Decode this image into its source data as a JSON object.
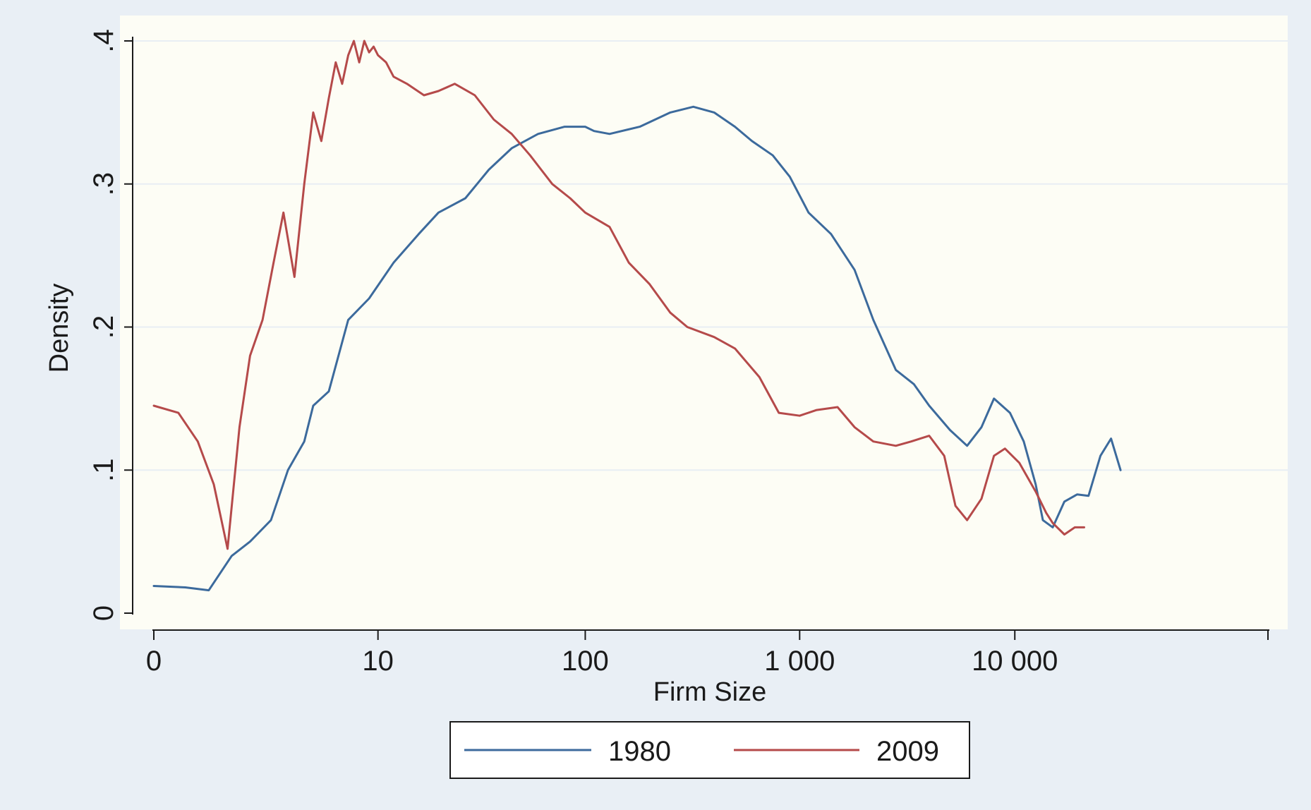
{
  "colors": {
    "outer_bg": "#e9eff5",
    "plot_bg": "#fdfdf5",
    "grid": "#e8eef4",
    "axis": "#1a1a1a",
    "series_1980": "#3c6a9c",
    "series_2009": "#b54a4a"
  },
  "chart_data": {
    "type": "line",
    "title": "",
    "xlabel": "Firm Size",
    "ylabel": "Density",
    "x_scale": "log1p",
    "xlim": [
      0,
      150000
    ],
    "ylim": [
      0,
      0.4
    ],
    "grid": true,
    "legend_position": "bottom-center",
    "x_ticks": [
      {
        "value": 0,
        "label": "0"
      },
      {
        "value": 10,
        "label": "10"
      },
      {
        "value": 100,
        "label": "100"
      },
      {
        "value": 1000,
        "label": "1 000"
      },
      {
        "value": 10000,
        "label": "10 000"
      },
      {
        "value": 150000,
        "label": ""
      }
    ],
    "y_ticks": [
      {
        "value": 0,
        "label": "0"
      },
      {
        "value": 0.1,
        "label": ".1"
      },
      {
        "value": 0.2,
        "label": ".2"
      },
      {
        "value": 0.3,
        "label": ".3"
      },
      {
        "value": 0.4,
        "label": ".4"
      }
    ],
    "series": [
      {
        "name": "1980",
        "color_key": "series_1980",
        "x": [
          0,
          0.4,
          0.8,
          1.3,
          1.8,
          2.5,
          3.2,
          4,
          4.5,
          5.5,
          7,
          9,
          12,
          16,
          20,
          27,
          35,
          45,
          60,
          80,
          100,
          110,
          130,
          180,
          250,
          320,
          400,
          500,
          600,
          750,
          900,
          1100,
          1400,
          1800,
          2200,
          2800,
          3400,
          4000,
          5000,
          6000,
          7000,
          8000,
          9500,
          11000,
          12500,
          13500,
          15000,
          17000,
          19500,
          22000,
          25000,
          28000,
          31000
        ],
        "y": [
          0.019,
          0.018,
          0.016,
          0.04,
          0.05,
          0.065,
          0.1,
          0.12,
          0.145,
          0.155,
          0.205,
          0.22,
          0.245,
          0.265,
          0.28,
          0.29,
          0.31,
          0.325,
          0.335,
          0.34,
          0.34,
          0.337,
          0.335,
          0.34,
          0.35,
          0.354,
          0.35,
          0.34,
          0.33,
          0.32,
          0.305,
          0.28,
          0.265,
          0.24,
          0.205,
          0.17,
          0.16,
          0.145,
          0.128,
          0.117,
          0.13,
          0.15,
          0.14,
          0.12,
          0.09,
          0.065,
          0.06,
          0.078,
          0.083,
          0.082,
          0.11,
          0.122,
          0.1
        ]
      },
      {
        "name": "2009",
        "color_key": "series_2009",
        "x": [
          0,
          0.3,
          0.6,
          0.9,
          1.2,
          1.5,
          1.8,
          2.2,
          2.6,
          3,
          3.5,
          4,
          4.5,
          5,
          5.5,
          6,
          6.5,
          7,
          7.5,
          8,
          8.5,
          9,
          9.5,
          10,
          11,
          12,
          14,
          17,
          20,
          24,
          30,
          37,
          45,
          55,
          70,
          85,
          100,
          130,
          160,
          200,
          250,
          300,
          400,
          500,
          650,
          800,
          1000,
          1200,
          1500,
          1800,
          2200,
          2800,
          3300,
          4000,
          4700,
          5300,
          6000,
          7000,
          8000,
          9000,
          10500,
          12500,
          14000,
          15000,
          17000,
          19000,
          21000
        ],
        "y": [
          0.145,
          0.14,
          0.12,
          0.09,
          0.045,
          0.13,
          0.18,
          0.205,
          0.245,
          0.28,
          0.235,
          0.3,
          0.35,
          0.33,
          0.36,
          0.385,
          0.37,
          0.39,
          0.4,
          0.385,
          0.4,
          0.392,
          0.396,
          0.39,
          0.385,
          0.375,
          0.37,
          0.362,
          0.365,
          0.37,
          0.362,
          0.345,
          0.335,
          0.32,
          0.3,
          0.29,
          0.28,
          0.27,
          0.245,
          0.23,
          0.21,
          0.2,
          0.193,
          0.185,
          0.165,
          0.14,
          0.138,
          0.142,
          0.144,
          0.13,
          0.12,
          0.117,
          0.12,
          0.124,
          0.11,
          0.075,
          0.065,
          0.08,
          0.11,
          0.115,
          0.105,
          0.085,
          0.07,
          0.063,
          0.055,
          0.06,
          0.06
        ]
      }
    ]
  }
}
